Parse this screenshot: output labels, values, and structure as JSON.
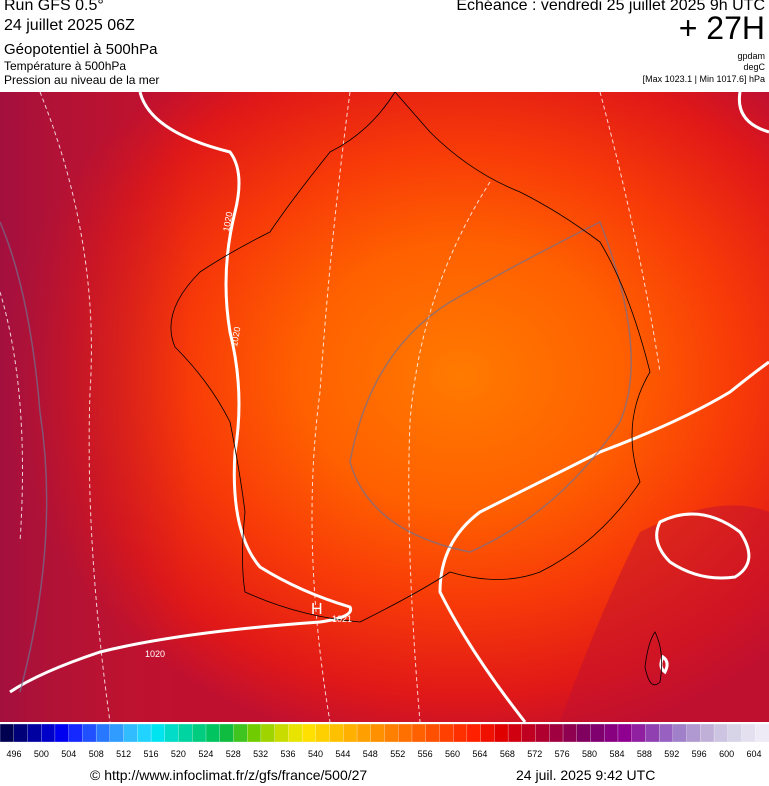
{
  "header": {
    "run": "Run GFS 0.5°",
    "date": "24 juillet 2025 06Z",
    "field1": "Géopotentiel à 500hPa",
    "field2": "Température à 500hPa",
    "field3": "Pression au niveau de la mer",
    "echeance": "Echéance : vendredi 25 juillet 2025 9h UTC",
    "lead": "+ 27H",
    "unit1": "gpdam",
    "unit2": "degC",
    "range": "[Max 1023.1 | Min 1017.6] hPa"
  },
  "map_labels": [
    "1020",
    "1020",
    "1020",
    "1021",
    "H"
  ],
  "colorbar": {
    "labels": [
      "496",
      "500",
      "504",
      "508",
      "512",
      "516",
      "520",
      "524",
      "528",
      "532",
      "536",
      "540",
      "544",
      "548",
      "552",
      "556",
      "560",
      "564",
      "568",
      "572",
      "576",
      "580",
      "584",
      "588",
      "592",
      "596",
      "600",
      "604"
    ],
    "colors": [
      "#000050",
      "#000078",
      "#0000a0",
      "#0000c8",
      "#0000f0",
      "#1428ff",
      "#2050ff",
      "#2878ff",
      "#309cff",
      "#30bcff",
      "#20d4ff",
      "#00e4f0",
      "#00dcc8",
      "#00d4a0",
      "#00cc80",
      "#00c460",
      "#10bc40",
      "#40c420",
      "#70cc00",
      "#a0d400",
      "#c8dc00",
      "#e8e400",
      "#ffe000",
      "#ffd000",
      "#ffc000",
      "#ffb000",
      "#ffa000",
      "#ff9000",
      "#ff8000",
      "#ff7000",
      "#ff6000",
      "#ff5000",
      "#ff4000",
      "#ff3000",
      "#ff2000",
      "#f01000",
      "#e00000",
      "#d00010",
      "#c00020",
      "#b00030",
      "#a00040",
      "#900050",
      "#800060",
      "#800070",
      "#880080",
      "#900090",
      "#9020a0",
      "#9040b0",
      "#9860c0",
      "#a080c8",
      "#b098d0",
      "#c0b0d8",
      "#ccc4e0",
      "#d8d4e8",
      "#e4e0f0",
      "#eeeaf6"
    ]
  },
  "footer": {
    "source": "© http://www.infoclimat.fr/z/gfs/france/500/27",
    "timestamp": "24 juil. 2025  9:42 UTC"
  }
}
